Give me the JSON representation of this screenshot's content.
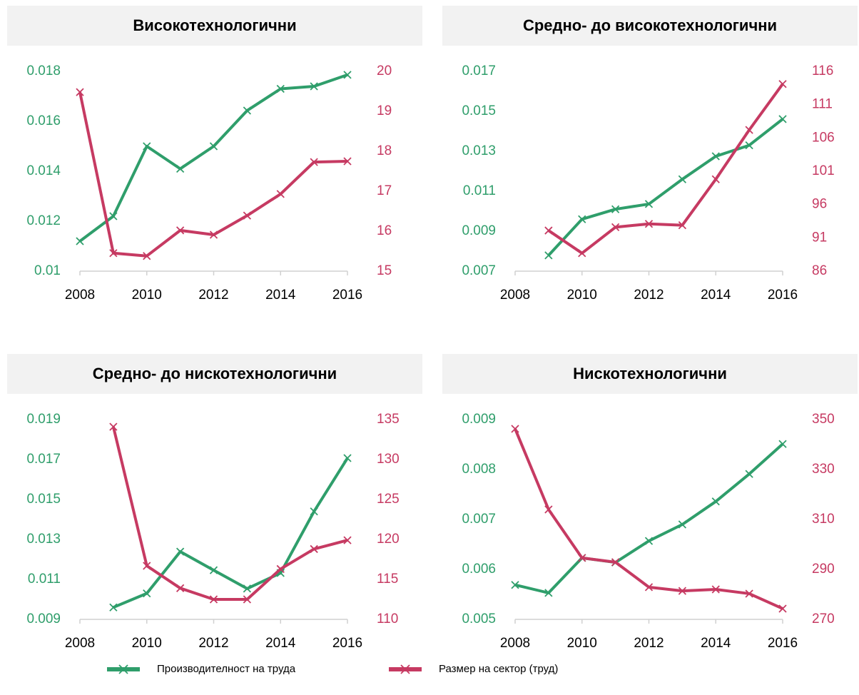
{
  "chart_data": [
    {
      "type": "line",
      "title": "Високотехнологични",
      "x": [
        2008,
        2009,
        2010,
        2011,
        2012,
        2013,
        2014,
        2015,
        2016
      ],
      "xlim": [
        2008,
        2016
      ],
      "xticks": [
        2008,
        2010,
        2012,
        2014,
        2016
      ],
      "ylim": [
        0.01,
        0.018
      ],
      "yticks": [
        0.01,
        0.012,
        0.014,
        0.016,
        0.018
      ],
      "y2lim": [
        15,
        20
      ],
      "y2ticks": [
        15,
        16,
        17,
        18,
        19,
        20
      ],
      "series": [
        {
          "name": "Производителност на труда",
          "color": "#2f9e6b",
          "values": [
            0.0112,
            0.0122,
            0.015,
            0.0141,
            0.015,
            0.01643,
            0.0173,
            0.0174,
            0.01786
          ]
        },
        {
          "name": "Размер на сектор (труд)",
          "color": "#c63a62",
          "axis": "y2",
          "values": [
            19.48,
            15.45,
            15.38,
            16.02,
            15.91,
            16.39,
            16.93,
            17.73,
            17.75
          ]
        }
      ]
    },
    {
      "type": "line",
      "title": "Средно- до високотехнологични",
      "x": [
        2008,
        2009,
        2010,
        2011,
        2012,
        2013,
        2014,
        2015,
        2016
      ],
      "xlim": [
        2008,
        2016
      ],
      "xticks": [
        2008,
        2010,
        2012,
        2014,
        2016
      ],
      "ylim": [
        0.007,
        0.017
      ],
      "yticks": [
        0.007,
        0.009,
        0.011,
        0.013,
        0.015,
        0.017
      ],
      "y2lim": [
        86,
        116
      ],
      "y2ticks": [
        86,
        91,
        96,
        101,
        106,
        111,
        116
      ],
      "series": [
        {
          "color": "#2f9e6b",
          "values": [
            null,
            0.00779,
            0.0096,
            0.0101,
            0.01036,
            0.0116,
            0.01275,
            0.0133,
            0.01461
          ]
        },
        {
          "color": "#c63a62",
          "axis": "y2",
          "values": [
            null,
            92.1,
            88.7,
            92.6,
            93.1,
            92.9,
            99.8,
            107.2,
            114.1
          ]
        }
      ]
    },
    {
      "type": "line",
      "title": "Средно- до нискотехнологични",
      "x": [
        2008,
        2009,
        2010,
        2011,
        2012,
        2013,
        2014,
        2015,
        2016
      ],
      "xlim": [
        2008,
        2016
      ],
      "xticks": [
        2008,
        2010,
        2012,
        2014,
        2016
      ],
      "ylim": [
        0.009,
        0.019
      ],
      "yticks": [
        0.009,
        0.011,
        0.013,
        0.015,
        0.017,
        0.019
      ],
      "y2lim": [
        110,
        135
      ],
      "y2ticks": [
        110,
        115,
        120,
        125,
        130,
        135
      ],
      "series": [
        {
          "color": "#2f9e6b",
          "values": [
            null,
            0.0096,
            0.0103,
            0.01239,
            0.01146,
            0.01054,
            0.01132,
            0.0144,
            0.01707
          ]
        },
        {
          "color": "#c63a62",
          "axis": "y2",
          "values": [
            null,
            134.1,
            116.7,
            113.9,
            112.5,
            112.5,
            116.3,
            118.8,
            119.9
          ]
        }
      ]
    },
    {
      "type": "line",
      "title": "Нискотехнологични",
      "x": [
        2008,
        2009,
        2010,
        2011,
        2012,
        2013,
        2014,
        2015,
        2016
      ],
      "xlim": [
        2008,
        2016
      ],
      "xticks": [
        2008,
        2010,
        2012,
        2014,
        2016
      ],
      "ylim": [
        0.005,
        0.009
      ],
      "yticks": [
        0.005,
        0.006,
        0.007,
        0.008,
        0.009
      ],
      "y2lim": [
        270,
        350
      ],
      "y2ticks": [
        270,
        290,
        310,
        330,
        350
      ],
      "series": [
        {
          "color": "#2f9e6b",
          "values": [
            0.00569,
            0.00553,
            0.00623,
            0.00614,
            0.00657,
            0.0069,
            0.00736,
            0.00791,
            0.00851
          ]
        },
        {
          "color": "#c63a62",
          "axis": "y2",
          "values": [
            346.3,
            314,
            294.6,
            292.9,
            282.9,
            281.4,
            282,
            280.3,
            274.3
          ]
        }
      ]
    }
  ]
}
